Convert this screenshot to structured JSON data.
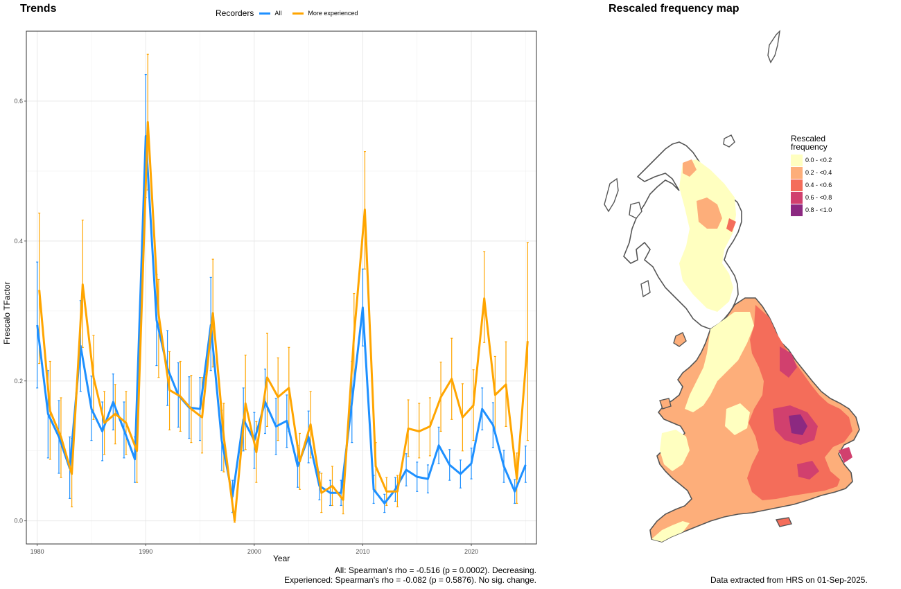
{
  "trends_panel": {
    "title": "Trends",
    "legend": {
      "title": "Recorders",
      "entries": [
        {
          "name": "All",
          "color": "#1e90ff"
        },
        {
          "name": "More experienced",
          "color": "#ffa500"
        }
      ]
    },
    "stats": {
      "line1": "All: Spearman's rho = -0.516 (p = 0.0002). Decreasing.",
      "line2": "Experienced: Spearman's rho = -0.082 (p = 0.5876). No sig. change."
    }
  },
  "chart_data": {
    "type": "line",
    "title": "Trends",
    "xlabel": "Year",
    "ylabel": "Frescalo TFactor",
    "xlim": [
      1979,
      2026
    ],
    "ylim": [
      -0.033,
      0.7
    ],
    "x_ticks": [
      1980,
      1990,
      2000,
      2010,
      2020
    ],
    "y_ticks": [
      "0.0",
      "0.2",
      "0.4",
      "0.6"
    ],
    "y_tick_values": [
      0,
      0.2,
      0.4,
      0.6
    ],
    "grid": true,
    "legend_position": "top",
    "x": [
      1980,
      1981,
      1982,
      1983,
      1984,
      1985,
      1986,
      1987,
      1988,
      1989,
      1990,
      1991,
      1992,
      1993,
      1994,
      1995,
      1996,
      1997,
      1998,
      1999,
      2000,
      2001,
      2002,
      2003,
      2004,
      2005,
      2006,
      2007,
      2008,
      2009,
      2010,
      2011,
      2012,
      2013,
      2014,
      2015,
      2016,
      2017,
      2018,
      2019,
      2020,
      2021,
      2022,
      2023,
      2024,
      2025
    ],
    "series": [
      {
        "name": "All",
        "color": "#1e90ff",
        "values": [
          0.28,
          0.153,
          0.12,
          0.075,
          0.25,
          0.16,
          0.128,
          0.17,
          0.13,
          0.088,
          0.55,
          0.287,
          0.218,
          0.18,
          0.162,
          0.16,
          0.28,
          0.115,
          0.035,
          0.145,
          0.115,
          0.17,
          0.135,
          0.143,
          0.078,
          0.12,
          0.05,
          0.04,
          0.04,
          0.17,
          0.305,
          0.045,
          0.025,
          0.045,
          0.073,
          0.063,
          0.06,
          0.108,
          0.08,
          0.067,
          0.082,
          0.16,
          0.137,
          0.078,
          0.042,
          0.08
        ],
        "error_low": [
          0.19,
          0.09,
          0.068,
          0.032,
          0.185,
          0.115,
          0.086,
          0.13,
          0.09,
          0.055,
          0.462,
          0.222,
          0.165,
          0.134,
          0.118,
          0.115,
          0.215,
          0.072,
          0.012,
          0.1,
          0.075,
          0.125,
          0.095,
          0.105,
          0.048,
          0.083,
          0.03,
          0.022,
          0.022,
          0.112,
          0.25,
          0.025,
          0.012,
          0.028,
          0.05,
          0.042,
          0.04,
          0.082,
          0.058,
          0.047,
          0.06,
          0.13,
          0.105,
          0.055,
          0.025,
          0.055
        ],
        "error_high": [
          0.37,
          0.215,
          0.172,
          0.12,
          0.315,
          0.207,
          0.17,
          0.21,
          0.17,
          0.12,
          0.638,
          0.352,
          0.272,
          0.226,
          0.206,
          0.205,
          0.348,
          0.158,
          0.058,
          0.19,
          0.155,
          0.217,
          0.175,
          0.18,
          0.108,
          0.157,
          0.07,
          0.058,
          0.058,
          0.228,
          0.36,
          0.065,
          0.038,
          0.062,
          0.096,
          0.084,
          0.08,
          0.134,
          0.102,
          0.087,
          0.104,
          0.19,
          0.169,
          0.101,
          0.059,
          0.107
        ]
      },
      {
        "name": "More experienced",
        "color": "#ffa500",
        "values": [
          0.33,
          0.157,
          0.12,
          0.067,
          0.338,
          0.205,
          0.14,
          0.153,
          0.14,
          0.1,
          0.57,
          0.295,
          0.187,
          0.178,
          0.16,
          0.148,
          0.297,
          0.12,
          0.0,
          0.168,
          0.098,
          0.205,
          0.177,
          0.19,
          0.085,
          0.138,
          0.04,
          0.05,
          0.03,
          0.265,
          0.445,
          0.078,
          0.042,
          0.042,
          0.132,
          0.128,
          0.135,
          0.177,
          0.203,
          0.148,
          0.165,
          0.318,
          0.18,
          0.195,
          0.06,
          0.257
        ],
        "error_low": [
          0.225,
          0.088,
          0.062,
          0.02,
          0.248,
          0.145,
          0.095,
          0.11,
          0.095,
          0.055,
          0.473,
          0.205,
          0.13,
          0.128,
          0.112,
          0.097,
          0.22,
          0.07,
          -0.002,
          0.102,
          0.055,
          0.135,
          0.115,
          0.128,
          0.045,
          0.09,
          0.012,
          0.022,
          0.01,
          0.2,
          0.36,
          0.042,
          0.022,
          0.02,
          0.092,
          0.09,
          0.093,
          0.128,
          0.145,
          0.1,
          0.115,
          0.255,
          0.125,
          0.135,
          0.025,
          0.115
        ],
        "error_high": [
          0.44,
          0.228,
          0.176,
          0.118,
          0.43,
          0.265,
          0.185,
          0.195,
          0.185,
          0.145,
          0.667,
          0.345,
          0.242,
          0.228,
          0.208,
          0.205,
          0.374,
          0.168,
          0.012,
          0.237,
          0.142,
          0.268,
          0.233,
          0.248,
          0.125,
          0.185,
          0.068,
          0.078,
          0.052,
          0.325,
          0.528,
          0.112,
          0.062,
          0.065,
          0.173,
          0.168,
          0.176,
          0.227,
          0.261,
          0.196,
          0.216,
          0.385,
          0.235,
          0.256,
          0.097,
          0.398
        ]
      }
    ]
  },
  "map_panel": {
    "title": "Rescaled frequency map",
    "legend": {
      "title_line1": "Rescaled",
      "title_line2": "frequency",
      "classes": [
        {
          "label": "0.0 - <0.2",
          "color": "#ffffc0"
        },
        {
          "label": "0.2 - <0.4",
          "color": "#fdae7a"
        },
        {
          "label": "0.4 - <0.6",
          "color": "#f46d5a"
        },
        {
          "label": "0.6 - <0.8",
          "color": "#d1406e"
        },
        {
          "label": "0.8 - <1.0",
          "color": "#8c2981"
        }
      ]
    },
    "footer": "Data extracted from HRS on 01-Sep-2025."
  }
}
